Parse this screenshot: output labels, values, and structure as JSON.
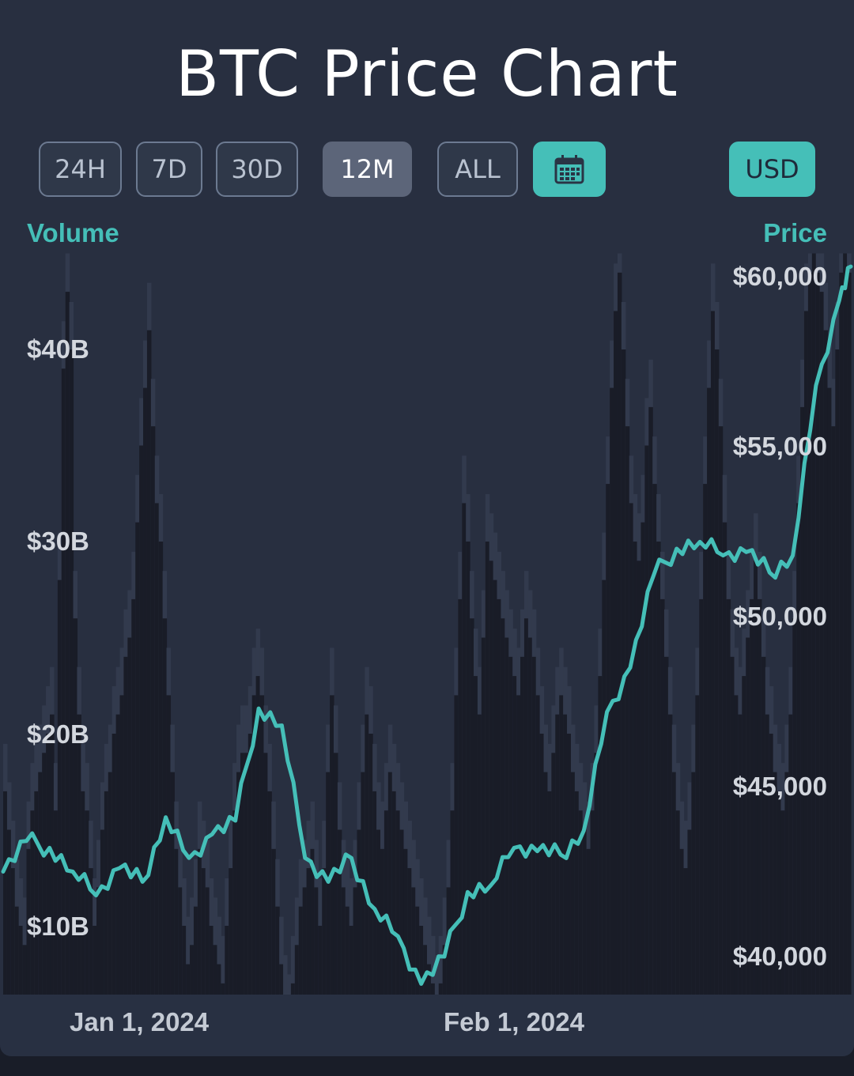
{
  "title": "BTC Price Chart",
  "range_buttons": [
    {
      "label": "24H",
      "active": false
    },
    {
      "label": "7D",
      "active": false
    },
    {
      "label": "30D",
      "active": false
    },
    {
      "label": "12M",
      "active": true
    },
    {
      "label": "ALL",
      "active": false
    }
  ],
  "calendar_icon": "calendar-icon",
  "currency_label": "USD",
  "colors": {
    "accent": "#45bfb8",
    "background": "#282f40",
    "volume_bar": "#191c27",
    "volume_bar_light": "#323a4d"
  },
  "chart_data": {
    "type": "line",
    "title": "BTC Price Chart",
    "y_left_label": "Volume",
    "y_right_label": "Price",
    "volume_ticks": [
      "$10B",
      "$20B",
      "$30B",
      "$40B"
    ],
    "price_ticks": [
      "$40,000",
      "$45,000",
      "$50,000",
      "$55,000",
      "$60,000"
    ],
    "x_ticks": [
      "Jan 1, 2024",
      "Feb 1, 2024"
    ],
    "price_range": [
      38900,
      60500
    ],
    "volume_range": [
      4000000000,
      45000000000
    ],
    "x_range": [
      "2023-12-18",
      "2024-02-29"
    ],
    "price_series": {
      "name": "Price",
      "x": [
        "2023-12-18",
        "2023-12-20",
        "2023-12-22",
        "2023-12-24",
        "2023-12-26",
        "2023-12-28",
        "2023-12-30",
        "2024-01-01",
        "2024-01-03",
        "2024-01-05",
        "2024-01-07",
        "2024-01-09",
        "2024-01-11",
        "2024-01-13",
        "2024-01-15",
        "2024-01-17",
        "2024-01-19",
        "2024-01-21",
        "2024-01-23",
        "2024-01-25",
        "2024-01-27",
        "2024-01-29",
        "2024-01-31",
        "2024-02-02",
        "2024-02-04",
        "2024-02-06",
        "2024-02-08",
        "2024-02-10",
        "2024-02-12",
        "2024-02-14",
        "2024-02-16",
        "2024-02-18",
        "2024-02-20",
        "2024-02-22",
        "2024-02-24",
        "2024-02-26",
        "2024-02-28",
        "2024-02-29"
      ],
      "y": [
        42500,
        43400,
        43200,
        42500,
        41800,
        42600,
        42200,
        44100,
        42900,
        43600,
        44000,
        47300,
        46800,
        42900,
        42200,
        42900,
        41400,
        40600,
        39200,
        40000,
        41900,
        42100,
        43200,
        43100,
        43000,
        43700,
        47200,
        48500,
        51200,
        52000,
        52200,
        51800,
        51900,
        51300,
        51800,
        56800,
        59300,
        60300
      ]
    },
    "volume_series": {
      "name": "Volume",
      "values_billion": [
        17,
        15,
        13,
        11,
        10,
        9,
        14,
        16,
        17,
        18,
        19,
        20,
        21,
        16,
        28,
        39,
        43,
        40,
        26,
        21,
        17,
        16,
        13,
        10,
        12,
        15,
        17,
        18,
        20,
        21,
        22,
        24,
        25,
        27,
        31,
        35,
        38,
        41,
        36,
        32,
        30,
        26,
        22,
        18,
        14,
        12,
        10,
        8,
        9,
        11,
        14,
        13,
        12,
        10,
        9,
        8,
        7,
        10,
        13,
        16,
        18,
        19,
        19,
        20,
        22,
        23,
        22,
        19,
        17,
        14,
        11,
        8,
        6,
        5,
        7,
        9,
        11,
        12,
        13,
        14,
        12,
        10,
        13,
        18,
        22,
        19,
        15,
        12,
        11,
        10,
        12,
        15,
        18,
        21,
        20,
        17,
        15,
        14,
        16,
        18,
        17,
        16,
        15,
        14,
        13,
        12,
        11,
        10,
        9,
        8,
        7,
        6,
        7,
        9,
        12,
        16,
        22,
        27,
        32,
        30,
        26,
        23,
        21,
        25,
        30,
        29,
        28,
        27,
        26,
        25,
        24,
        23,
        22,
        24,
        26,
        25,
        24,
        22,
        20,
        18,
        17,
        19,
        21,
        22,
        21,
        20,
        18,
        17,
        16,
        15,
        14,
        16,
        19,
        23,
        28,
        33,
        38,
        42,
        44,
        40,
        36,
        32,
        30,
        29,
        31,
        35,
        37,
        33,
        30,
        27,
        24,
        21,
        18,
        16,
        14,
        13,
        15,
        18,
        22,
        27,
        33,
        38,
        42,
        40,
        36,
        31,
        27,
        24,
        22,
        21,
        23,
        25,
        27,
        29,
        27,
        24,
        21,
        20,
        18,
        17,
        16,
        18,
        21,
        26,
        32,
        37,
        42,
        44,
        45,
        44,
        43,
        41,
        38,
        36,
        40,
        44,
        45,
        44
      ]
    }
  }
}
